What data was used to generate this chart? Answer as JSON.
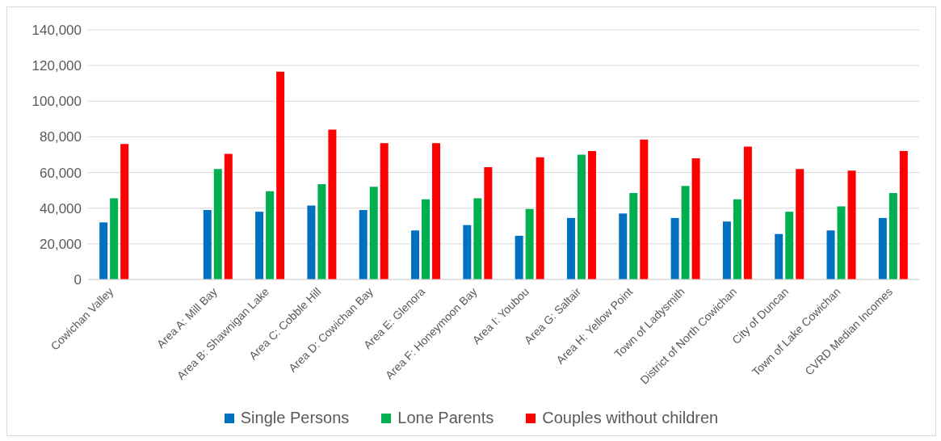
{
  "chart_data": {
    "type": "bar",
    "categories": [
      "Cowichan Valley",
      null,
      "Area A: Mill Bay",
      "Area B: Shawnigan Lake",
      "Area C: Cobble Hill",
      "Area D: Cowichan Bay",
      "Area E: Glenora",
      "Area F: Honeymoon Bay",
      "Area I: Youbou",
      "Area G: Saltair",
      "Area H: Yellow Point",
      "Town of Ladysmith",
      "District of North Cowichan",
      "City of Duncan",
      "Town of Lake Cowichan",
      "CVRD Median Incomes"
    ],
    "series": [
      {
        "name": "Single Persons",
        "color": "#0070c0",
        "values": [
          32000,
          null,
          39000,
          38000,
          41500,
          39000,
          27500,
          30500,
          24500,
          34500,
          37000,
          34500,
          32500,
          25500,
          27500,
          34500
        ]
      },
      {
        "name": "Lone Parents",
        "color": "#00b050",
        "values": [
          45500,
          null,
          62000,
          49500,
          53500,
          52000,
          45000,
          45500,
          39500,
          70000,
          48500,
          52500,
          45000,
          38000,
          41000,
          48500
        ]
      },
      {
        "name": "Couples without children",
        "color": "#ff0000",
        "values": [
          76000,
          null,
          70500,
          116500,
          84000,
          76500,
          76500,
          63000,
          68500,
          72000,
          78500,
          68000,
          74500,
          62000,
          61000,
          72000
        ]
      }
    ],
    "ylim": [
      0,
      140000
    ],
    "yticks": [
      0,
      {
        "value": 20000,
        "label": "20,000"
      },
      {
        "value": 40000,
        "label": "40,000"
      },
      {
        "value": 60000,
        "label": "60,000"
      },
      {
        "value": 80000,
        "label": "80,000"
      },
      {
        "value": 100000,
        "label": "100,000"
      },
      {
        "value": 120000,
        "label": "120,000"
      },
      {
        "value": 140000,
        "label": "140,000"
      }
    ],
    "grid": "y",
    "legend": "bottom"
  }
}
